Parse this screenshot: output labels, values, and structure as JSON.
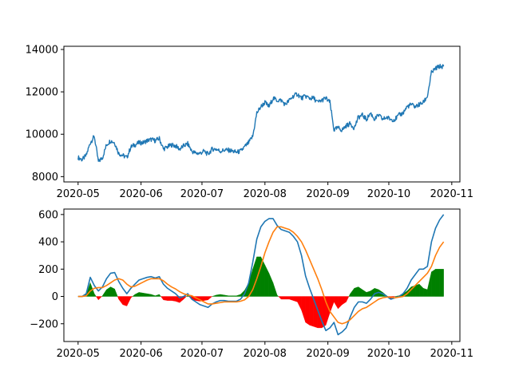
{
  "colors": {
    "price": "#1f77b4",
    "macd": "#1f77b4",
    "signal": "#ff7f0e",
    "hist_pos": "#008000",
    "hist_neg": "#ff0000"
  },
  "chart_data": [
    {
      "type": "line",
      "name": "price",
      "xlim": [
        "2020-04-24",
        "2020-11-05"
      ],
      "ylim": [
        7750,
        14150
      ],
      "x_ticks": [
        "2020-05-01",
        "2020-06-01",
        "2020-07-01",
        "2020-08-01",
        "2020-09-01",
        "2020-10-01",
        "2020-11-01"
      ],
      "x_tick_labels": [
        "2020-05",
        "2020-06",
        "2020-07",
        "2020-08",
        "2020-09",
        "2020-10",
        "2020-11"
      ],
      "y_ticks": [
        8000,
        10000,
        12000,
        14000
      ],
      "y_tick_labels": [
        "8000",
        "10000",
        "12000",
        "14000"
      ],
      "series": [
        {
          "x": [
            "2020-05-01",
            "2020-05-03",
            "2020-05-05",
            "2020-05-07",
            "2020-05-09",
            "2020-05-11",
            "2020-05-13",
            "2020-05-15",
            "2020-05-17",
            "2020-05-19",
            "2020-05-21",
            "2020-05-23",
            "2020-05-25",
            "2020-05-27",
            "2020-05-29",
            "2020-05-31",
            "2020-06-02",
            "2020-06-04",
            "2020-06-06",
            "2020-06-08",
            "2020-06-10",
            "2020-06-12",
            "2020-06-14",
            "2020-06-16",
            "2020-06-18",
            "2020-06-20",
            "2020-06-22",
            "2020-06-24",
            "2020-06-26",
            "2020-06-28",
            "2020-06-30",
            "2020-07-02",
            "2020-07-04",
            "2020-07-06",
            "2020-07-08",
            "2020-07-10",
            "2020-07-12",
            "2020-07-14",
            "2020-07-16",
            "2020-07-18",
            "2020-07-20",
            "2020-07-22",
            "2020-07-24",
            "2020-07-26",
            "2020-07-28",
            "2020-07-30",
            "2020-08-01",
            "2020-08-03",
            "2020-08-05",
            "2020-08-07",
            "2020-08-09",
            "2020-08-11",
            "2020-08-13",
            "2020-08-15",
            "2020-08-17",
            "2020-08-19",
            "2020-08-21",
            "2020-08-23",
            "2020-08-25",
            "2020-08-27",
            "2020-08-29",
            "2020-08-31",
            "2020-09-02",
            "2020-09-04",
            "2020-09-06",
            "2020-09-08",
            "2020-09-10",
            "2020-09-12",
            "2020-09-14",
            "2020-09-16",
            "2020-09-18",
            "2020-09-20",
            "2020-09-22",
            "2020-09-24",
            "2020-09-26",
            "2020-09-28",
            "2020-09-30",
            "2020-10-02",
            "2020-10-04",
            "2020-10-06",
            "2020-10-08",
            "2020-10-10",
            "2020-10-12",
            "2020-10-14",
            "2020-10-16",
            "2020-10-18",
            "2020-10-20",
            "2020-10-22",
            "2020-10-24",
            "2020-10-26",
            "2020-10-28"
          ],
          "y": [
            8900,
            8800,
            9000,
            9600,
            9900,
            8700,
            8900,
            9500,
            9700,
            9600,
            9100,
            9000,
            8900,
            9400,
            9500,
            9600,
            9600,
            9700,
            9750,
            9700,
            9800,
            9300,
            9400,
            9500,
            9450,
            9300,
            9450,
            9550,
            9200,
            9100,
            9100,
            9200,
            9050,
            9300,
            9300,
            9200,
            9250,
            9250,
            9200,
            9150,
            9200,
            9400,
            9600,
            9900,
            11000,
            11300,
            11500,
            11300,
            11700,
            11600,
            11600,
            11400,
            11600,
            11800,
            11900,
            11700,
            11800,
            11700,
            11700,
            11500,
            11600,
            11700,
            11500,
            10200,
            10300,
            10200,
            10400,
            10500,
            10300,
            10800,
            10900,
            10700,
            11000,
            10700,
            10900,
            10700,
            10800,
            10700,
            10700,
            10900,
            11000,
            11300,
            11400,
            11300,
            11400,
            11500,
            11800,
            12900,
            13100,
            13200,
            13200
          ]
        }
      ]
    },
    {
      "type": "line",
      "name": "macd",
      "xlim": [
        "2020-04-24",
        "2020-11-05"
      ],
      "ylim": [
        -330,
        640
      ],
      "x_ticks": [
        "2020-05-01",
        "2020-06-01",
        "2020-07-01",
        "2020-08-01",
        "2020-09-01",
        "2020-10-01",
        "2020-11-01"
      ],
      "x_tick_labels": [
        "2020-05",
        "2020-06",
        "2020-07",
        "2020-08",
        "2020-09",
        "2020-10",
        "2020-11"
      ],
      "y_ticks": [
        -200,
        0,
        200,
        400,
        600
      ],
      "y_tick_labels": [
        "−200",
        "0",
        "200",
        "400",
        "600"
      ],
      "x": [
        "2020-05-01",
        "2020-05-03",
        "2020-05-05",
        "2020-05-07",
        "2020-05-09",
        "2020-05-11",
        "2020-05-13",
        "2020-05-15",
        "2020-05-17",
        "2020-05-19",
        "2020-05-21",
        "2020-05-23",
        "2020-05-25",
        "2020-05-27",
        "2020-05-29",
        "2020-05-31",
        "2020-06-02",
        "2020-06-04",
        "2020-06-06",
        "2020-06-08",
        "2020-06-10",
        "2020-06-12",
        "2020-06-14",
        "2020-06-16",
        "2020-06-18",
        "2020-06-20",
        "2020-06-22",
        "2020-06-24",
        "2020-06-26",
        "2020-06-28",
        "2020-06-30",
        "2020-07-02",
        "2020-07-04",
        "2020-07-06",
        "2020-07-08",
        "2020-07-10",
        "2020-07-12",
        "2020-07-14",
        "2020-07-16",
        "2020-07-18",
        "2020-07-20",
        "2020-07-22",
        "2020-07-24",
        "2020-07-26",
        "2020-07-28",
        "2020-07-30",
        "2020-08-01",
        "2020-08-03",
        "2020-08-05",
        "2020-08-07",
        "2020-08-09",
        "2020-08-11",
        "2020-08-13",
        "2020-08-15",
        "2020-08-17",
        "2020-08-19",
        "2020-08-21",
        "2020-08-23",
        "2020-08-25",
        "2020-08-27",
        "2020-08-29",
        "2020-08-31",
        "2020-09-02",
        "2020-09-04",
        "2020-09-06",
        "2020-09-08",
        "2020-09-10",
        "2020-09-12",
        "2020-09-14",
        "2020-09-16",
        "2020-09-18",
        "2020-09-20",
        "2020-09-22",
        "2020-09-24",
        "2020-09-26",
        "2020-09-28",
        "2020-09-30",
        "2020-10-02",
        "2020-10-04",
        "2020-10-06",
        "2020-10-08",
        "2020-10-10",
        "2020-10-12",
        "2020-10-14",
        "2020-10-16",
        "2020-10-18",
        "2020-10-20",
        "2020-10-22",
        "2020-10-24",
        "2020-10-26",
        "2020-10-28"
      ],
      "series": [
        {
          "role": "macd",
          "values": [
            0,
            0,
            20,
            140,
            80,
            40,
            70,
            130,
            170,
            175,
            110,
            60,
            20,
            60,
            90,
            120,
            130,
            140,
            145,
            135,
            145,
            90,
            60,
            40,
            20,
            -10,
            0,
            20,
            -20,
            -40,
            -60,
            -70,
            -80,
            -55,
            -40,
            -30,
            -30,
            -35,
            -35,
            -35,
            -20,
            20,
            100,
            250,
            420,
            510,
            550,
            570,
            570,
            520,
            490,
            480,
            470,
            440,
            400,
            300,
            150,
            60,
            -20,
            -100,
            -180,
            -250,
            -230,
            -190,
            -280,
            -260,
            -230,
            -150,
            -80,
            -40,
            -40,
            -50,
            -20,
            20,
            30,
            20,
            0,
            -20,
            -10,
            0,
            20,
            60,
            120,
            160,
            200,
            200,
            220,
            400,
            500,
            560,
            600
          ]
        },
        {
          "role": "signal",
          "values": [
            0,
            0,
            5,
            40,
            60,
            65,
            65,
            80,
            100,
            120,
            130,
            120,
            90,
            70,
            75,
            90,
            105,
            120,
            130,
            130,
            130,
            115,
            90,
            70,
            55,
            35,
            20,
            10,
            5,
            -10,
            -25,
            -40,
            -55,
            -55,
            -50,
            -45,
            -40,
            -40,
            -40,
            -40,
            -35,
            -25,
            0,
            50,
            130,
            220,
            320,
            400,
            470,
            510,
            510,
            500,
            490,
            470,
            440,
            400,
            340,
            270,
            200,
            130,
            50,
            -40,
            -110,
            -150,
            -190,
            -200,
            -190,
            -170,
            -140,
            -110,
            -90,
            -80,
            -60,
            -40,
            -20,
            -10,
            -5,
            -5,
            -10,
            -5,
            0,
            20,
            50,
            80,
            110,
            140,
            170,
            220,
            300,
            360,
            400
          ]
        }
      ]
    }
  ]
}
